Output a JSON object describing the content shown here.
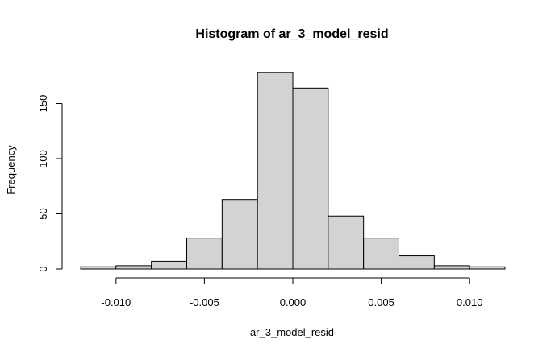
{
  "chart_data": {
    "type": "bar",
    "title": "Histogram of ar_3_model_resid",
    "xlabel": "ar_3_model_resid",
    "ylabel": "Frequency",
    "bin_edges": [
      -0.012,
      -0.01,
      -0.008,
      -0.006,
      -0.004,
      -0.002,
      0.0,
      0.002,
      0.004,
      0.006,
      0.008,
      0.01,
      0.012
    ],
    "values": [
      2,
      3,
      7,
      28,
      63,
      178,
      164,
      48,
      28,
      12,
      3,
      2
    ],
    "xlim": [
      -0.012,
      0.012
    ],
    "ylim": [
      0,
      180
    ],
    "x_ticks": [
      -0.01,
      -0.005,
      0.0,
      0.005,
      0.01
    ],
    "x_tick_labels": [
      "-0.010",
      "-0.005",
      "0.000",
      "0.005",
      "0.010"
    ],
    "y_ticks": [
      0,
      50,
      100,
      150
    ],
    "y_tick_labels": [
      "0",
      "50",
      "100",
      "150"
    ],
    "bar_color": "#d3d3d3",
    "grid": false
  }
}
